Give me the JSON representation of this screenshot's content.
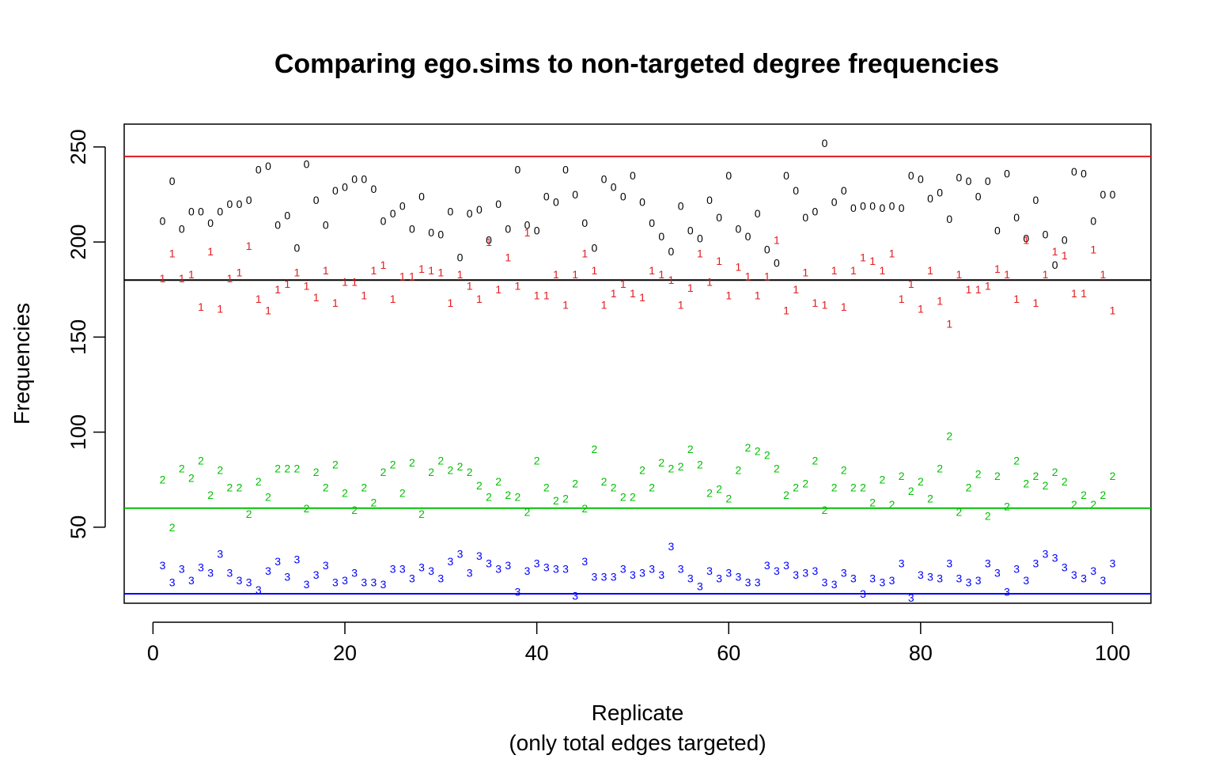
{
  "chart_data": {
    "type": "scatter",
    "title": "Comparing ego.sims to non-targeted degree frequencies",
    "xlabel": "Replicate",
    "xlabel_sub": "(only total edges targeted)",
    "ylabel": "Frequencies",
    "xlim": [
      -3,
      104
    ],
    "ylim": [
      10,
      262
    ],
    "x_ticks": [
      0,
      20,
      40,
      60,
      80,
      100
    ],
    "y_ticks": [
      50,
      100,
      150,
      200,
      250
    ],
    "grid": false,
    "reference_lines": [
      {
        "y": 245,
        "color": "#e31a1c"
      },
      {
        "y": 180,
        "color": "#000000"
      },
      {
        "y": 60,
        "color": "#00c000"
      },
      {
        "y": 15,
        "color": "#0000ff"
      }
    ],
    "series": [
      {
        "marker": "0",
        "color": "#000000",
        "x": [
          1,
          2,
          3,
          4,
          5,
          6,
          7,
          8,
          9,
          10,
          11,
          12,
          13,
          14,
          15,
          16,
          17,
          18,
          19,
          20,
          21,
          22,
          23,
          24,
          25,
          26,
          27,
          28,
          29,
          30,
          31,
          32,
          33,
          34,
          35,
          36,
          37,
          38,
          39,
          40,
          41,
          42,
          43,
          44,
          45,
          46,
          47,
          48,
          49,
          50,
          51,
          52,
          53,
          54,
          55,
          56,
          57,
          58,
          59,
          60,
          61,
          62,
          63,
          64,
          65,
          66,
          67,
          68,
          69,
          70,
          71,
          72,
          73,
          74,
          75,
          76,
          77,
          78,
          79,
          80,
          81,
          82,
          83,
          84,
          85,
          86,
          87,
          88,
          89,
          90,
          91,
          92,
          93,
          94,
          95,
          96,
          97,
          98,
          99,
          100
        ],
        "values": [
          211,
          232,
          207,
          216,
          216,
          210,
          216,
          220,
          220,
          222,
          238,
          240,
          209,
          214,
          197,
          241,
          222,
          209,
          227,
          229,
          233,
          233,
          228,
          211,
          215,
          219,
          207,
          224,
          205,
          204,
          216,
          192,
          215,
          217,
          201,
          220,
          207,
          238,
          209,
          206,
          224,
          221,
          238,
          225,
          210,
          197,
          233,
          229,
          224,
          235,
          221,
          210,
          203,
          195,
          219,
          206,
          202,
          222,
          213,
          235,
          207,
          203,
          215,
          196,
          189,
          235,
          227,
          213,
          216,
          252,
          221,
          227,
          218,
          219,
          219,
          218,
          219,
          218,
          235,
          233,
          223,
          226,
          212,
          234,
          232,
          224,
          232,
          206,
          236,
          213,
          202,
          222,
          204,
          188,
          201,
          237,
          236,
          211,
          225,
          225
        ]
      },
      {
        "marker": "1",
        "color": "#e31a1c",
        "x": [
          1,
          2,
          3,
          4,
          5,
          6,
          7,
          8,
          9,
          10,
          11,
          12,
          13,
          14,
          15,
          16,
          17,
          18,
          19,
          20,
          21,
          22,
          23,
          24,
          25,
          26,
          27,
          28,
          29,
          30,
          31,
          32,
          33,
          34,
          35,
          36,
          37,
          38,
          39,
          40,
          41,
          42,
          43,
          44,
          45,
          46,
          47,
          48,
          49,
          50,
          51,
          52,
          53,
          54,
          55,
          56,
          57,
          58,
          59,
          60,
          61,
          62,
          63,
          64,
          65,
          66,
          67,
          68,
          69,
          70,
          71,
          72,
          73,
          74,
          75,
          76,
          77,
          78,
          79,
          80,
          81,
          82,
          83,
          84,
          85,
          86,
          87,
          88,
          89,
          90,
          91,
          92,
          93,
          94,
          95,
          96,
          97,
          98,
          99,
          100
        ],
        "values": [
          181,
          194,
          181,
          183,
          166,
          195,
          165,
          181,
          184,
          198,
          170,
          164,
          175,
          178,
          184,
          177,
          171,
          185,
          168,
          179,
          179,
          172,
          185,
          188,
          170,
          182,
          182,
          186,
          185,
          184,
          168,
          183,
          177,
          170,
          200,
          175,
          192,
          177,
          205,
          172,
          172,
          183,
          167,
          183,
          194,
          185,
          167,
          173,
          178,
          173,
          171,
          185,
          183,
          180,
          167,
          176,
          194,
          179,
          190,
          172,
          187,
          182,
          172,
          182,
          201,
          164,
          175,
          184,
          168,
          167,
          185,
          166,
          185,
          192,
          190,
          185,
          194,
          170,
          178,
          165,
          185,
          169,
          157,
          183,
          175,
          175,
          177,
          186,
          183,
          170,
          201,
          168,
          183,
          195,
          193,
          173,
          173,
          196,
          183,
          164
        ]
      },
      {
        "marker": "2",
        "color": "#00c000",
        "x": [
          1,
          2,
          3,
          4,
          5,
          6,
          7,
          8,
          9,
          10,
          11,
          12,
          13,
          14,
          15,
          16,
          17,
          18,
          19,
          20,
          21,
          22,
          23,
          24,
          25,
          26,
          27,
          28,
          29,
          30,
          31,
          32,
          33,
          34,
          35,
          36,
          37,
          38,
          39,
          40,
          41,
          42,
          43,
          44,
          45,
          46,
          47,
          48,
          49,
          50,
          51,
          52,
          53,
          54,
          55,
          56,
          57,
          58,
          59,
          60,
          61,
          62,
          63,
          64,
          65,
          66,
          67,
          68,
          69,
          70,
          71,
          72,
          73,
          74,
          75,
          76,
          77,
          78,
          79,
          80,
          81,
          82,
          83,
          84,
          85,
          86,
          87,
          88,
          89,
          90,
          91,
          92,
          93,
          94,
          95,
          96,
          97,
          98,
          99,
          100
        ],
        "values": [
          75,
          50,
          81,
          76,
          85,
          67,
          80,
          71,
          71,
          57,
          74,
          66,
          81,
          81,
          81,
          60,
          79,
          71,
          83,
          68,
          59,
          71,
          63,
          79,
          83,
          68,
          84,
          57,
          79,
          85,
          80,
          82,
          79,
          72,
          66,
          74,
          67,
          66,
          58,
          85,
          71,
          64,
          65,
          73,
          60,
          91,
          74,
          71,
          66,
          66,
          80,
          71,
          84,
          81,
          82,
          91,
          83,
          68,
          70,
          65,
          80,
          92,
          90,
          88,
          81,
          67,
          71,
          73,
          85,
          59,
          71,
          80,
          71,
          71,
          63,
          75,
          62,
          77,
          69,
          74,
          65,
          81,
          98,
          58,
          71,
          78,
          56,
          77,
          61,
          85,
          73,
          77,
          72,
          79,
          74,
          62,
          67,
          62,
          67,
          77
        ]
      },
      {
        "marker": "3",
        "color": "#0000ff",
        "x": [
          1,
          2,
          3,
          4,
          5,
          6,
          7,
          8,
          9,
          10,
          11,
          12,
          13,
          14,
          15,
          16,
          17,
          18,
          19,
          20,
          21,
          22,
          23,
          24,
          25,
          26,
          27,
          28,
          29,
          30,
          31,
          32,
          33,
          34,
          35,
          36,
          37,
          38,
          39,
          40,
          41,
          42,
          43,
          44,
          45,
          46,
          47,
          48,
          49,
          50,
          51,
          52,
          53,
          54,
          55,
          56,
          57,
          58,
          59,
          60,
          61,
          62,
          63,
          64,
          65,
          66,
          67,
          68,
          69,
          70,
          71,
          72,
          73,
          74,
          75,
          76,
          77,
          78,
          79,
          80,
          81,
          82,
          83,
          84,
          85,
          86,
          87,
          88,
          89,
          90,
          91,
          92,
          93,
          94,
          95,
          96,
          97,
          98,
          99,
          100
        ],
        "values": [
          30,
          21,
          28,
          22,
          29,
          26,
          36,
          26,
          22,
          21,
          17,
          27,
          32,
          24,
          33,
          20,
          25,
          30,
          21,
          22,
          26,
          21,
          21,
          20,
          28,
          28,
          23,
          29,
          27,
          23,
          32,
          36,
          26,
          35,
          31,
          28,
          30,
          16,
          27,
          31,
          29,
          28,
          28,
          14,
          32,
          24,
          24,
          24,
          28,
          25,
          26,
          28,
          25,
          40,
          28,
          23,
          19,
          27,
          23,
          26,
          24,
          21,
          21,
          30,
          27,
          30,
          25,
          26,
          27,
          21,
          20,
          26,
          23,
          15,
          23,
          21,
          22,
          31,
          13,
          25,
          24,
          23,
          31,
          23,
          21,
          22,
          31,
          26,
          16,
          28,
          22,
          31,
          36,
          34,
          29,
          25,
          23,
          27,
          22,
          31
        ]
      }
    ]
  }
}
